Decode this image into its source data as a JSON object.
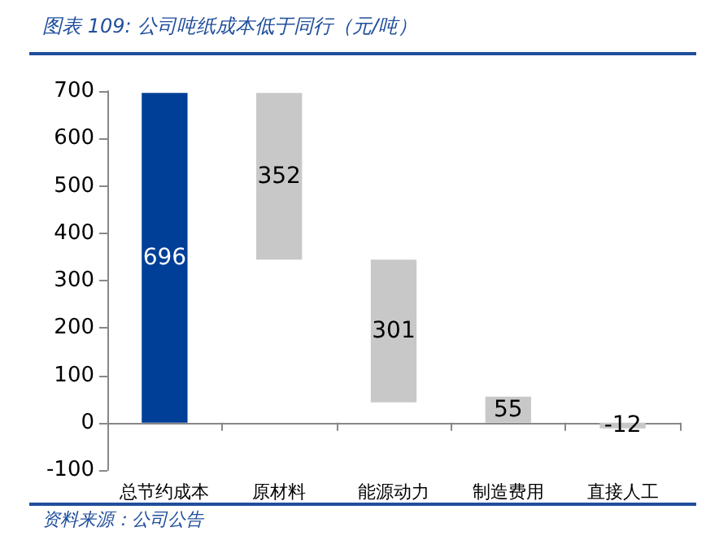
{
  "chart_data": {
    "type": "bar",
    "title": "图表 109: 公司吨纸成本低于同行（元/吨）",
    "categories": [
      "总节约成本",
      "原材料",
      "能源动力",
      "制造费用",
      "直接人工"
    ],
    "values": [
      696,
      352,
      301,
      55,
      -12
    ],
    "base": [
      0,
      344,
      43,
      0,
      0
    ],
    "colors": [
      "#003f97",
      "#c8c8c8",
      "#c8c8c8",
      "#c8c8c8",
      "#c8c8c8"
    ],
    "ylim": [
      -100,
      700
    ],
    "yticks": [
      -100,
      0,
      100,
      200,
      300,
      400,
      500,
      600,
      700
    ],
    "data_labels": true,
    "annotations": [
      "资料来源：公司公告"
    ]
  }
}
